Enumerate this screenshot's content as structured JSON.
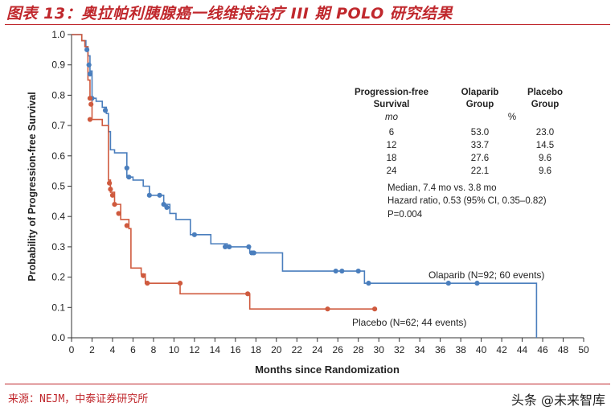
{
  "figure": {
    "title": "图表 13：奥拉帕利胰腺癌一线维持治疗 III 期 POLO 研究结果",
    "source": "来源：NEJM，中泰证券研究所",
    "watermark": "头条 @未来智库"
  },
  "chart_data": {
    "type": "line",
    "subtype": "kaplan-meier-step",
    "title": "",
    "xlabel": "Months since Randomization",
    "ylabel": "Probability of Progression-free Survival",
    "xlim": [
      0,
      50
    ],
    "ylim": [
      0,
      1.0
    ],
    "x_ticks": [
      0,
      2,
      4,
      6,
      8,
      10,
      12,
      14,
      16,
      18,
      20,
      22,
      24,
      26,
      28,
      30,
      32,
      34,
      36,
      38,
      40,
      42,
      44,
      46,
      48,
      50
    ],
    "y_ticks": [
      0.0,
      0.1,
      0.2,
      0.3,
      0.4,
      0.5,
      0.6,
      0.7,
      0.8,
      0.9,
      1.0
    ],
    "y_tick_labels": [
      "0.0",
      "0.1",
      "0.2",
      "0.3",
      "0.4",
      "0.5",
      "0.6",
      "0.7",
      "0.8",
      "0.9",
      "1.0"
    ],
    "grid": false,
    "series": [
      {
        "name": "Olaparib",
        "label": "Olaparib (N=92; 60 events)",
        "color": "#4a7ebd",
        "steps": [
          [
            0,
            1.0
          ],
          [
            1.0,
            0.98
          ],
          [
            1.4,
            0.96
          ],
          [
            1.6,
            0.93
          ],
          [
            1.8,
            0.88
          ],
          [
            2.0,
            0.79
          ],
          [
            2.4,
            0.78
          ],
          [
            3.0,
            0.76
          ],
          [
            3.4,
            0.74
          ],
          [
            3.6,
            0.68
          ],
          [
            3.8,
            0.62
          ],
          [
            4.2,
            0.61
          ],
          [
            5.4,
            0.53
          ],
          [
            6.0,
            0.52
          ],
          [
            7.0,
            0.5
          ],
          [
            7.6,
            0.47
          ],
          [
            8.6,
            0.47
          ],
          [
            9.0,
            0.44
          ],
          [
            9.6,
            0.41
          ],
          [
            10.2,
            0.39
          ],
          [
            11.6,
            0.34
          ],
          [
            13.6,
            0.31
          ],
          [
            15.2,
            0.3
          ],
          [
            17.4,
            0.28
          ],
          [
            20.6,
            0.22
          ],
          [
            28.6,
            0.18
          ],
          [
            45.4,
            0.0
          ]
        ],
        "censor": [
          [
            1.5,
            0.95
          ],
          [
            1.7,
            0.9
          ],
          [
            1.8,
            0.87
          ],
          [
            2.0,
            0.79
          ],
          [
            3.3,
            0.75
          ],
          [
            5.4,
            0.56
          ],
          [
            5.6,
            0.53
          ],
          [
            7.6,
            0.47
          ],
          [
            8.6,
            0.47
          ],
          [
            9.0,
            0.44
          ],
          [
            9.3,
            0.43
          ],
          [
            12.0,
            0.34
          ],
          [
            15.0,
            0.3
          ],
          [
            15.4,
            0.3
          ],
          [
            17.3,
            0.3
          ],
          [
            17.6,
            0.28
          ],
          [
            17.8,
            0.28
          ],
          [
            25.8,
            0.22
          ],
          [
            26.4,
            0.22
          ],
          [
            28.0,
            0.22
          ],
          [
            29.0,
            0.18
          ],
          [
            36.8,
            0.18
          ],
          [
            39.6,
            0.18
          ]
        ]
      },
      {
        "name": "Placebo",
        "label": "Placebo (N=62; 44 events)",
        "color": "#cf5a3e",
        "steps": [
          [
            0,
            1.0
          ],
          [
            1.0,
            0.98
          ],
          [
            1.3,
            0.96
          ],
          [
            1.6,
            0.85
          ],
          [
            1.8,
            0.79
          ],
          [
            2.0,
            0.72
          ],
          [
            3.0,
            0.7
          ],
          [
            3.6,
            0.52
          ],
          [
            3.8,
            0.48
          ],
          [
            4.2,
            0.44
          ],
          [
            4.8,
            0.39
          ],
          [
            5.6,
            0.36
          ],
          [
            5.8,
            0.23
          ],
          [
            6.8,
            0.21
          ],
          [
            7.2,
            0.18
          ],
          [
            10.6,
            0.145
          ],
          [
            17.4,
            0.095
          ],
          [
            29.8,
            0.095
          ]
        ],
        "censor": [
          [
            1.8,
            0.79
          ],
          [
            1.9,
            0.77
          ],
          [
            1.8,
            0.72
          ],
          [
            3.7,
            0.51
          ],
          [
            3.8,
            0.49
          ],
          [
            4.0,
            0.47
          ],
          [
            4.2,
            0.44
          ],
          [
            4.6,
            0.41
          ],
          [
            5.4,
            0.37
          ],
          [
            7.0,
            0.205
          ],
          [
            7.4,
            0.18
          ],
          [
            10.6,
            0.18
          ],
          [
            17.2,
            0.145
          ],
          [
            25.0,
            0.095
          ],
          [
            29.6,
            0.095
          ]
        ]
      }
    ],
    "annotations": {
      "olaparib_label": "Olaparib (N=92; 60 events)",
      "placebo_label": "Placebo (N=62; 44 events)"
    },
    "table": {
      "header": [
        "Progression-free",
        "Survival",
        "Olaparib",
        "Group",
        "Placebo",
        "Group"
      ],
      "units_left": "mo",
      "units_mid": "%",
      "rows": [
        {
          "month": "6",
          "olaparib": "53.0",
          "placebo": "23.0"
        },
        {
          "month": "12",
          "olaparib": "33.7",
          "placebo": "14.5"
        },
        {
          "month": "18",
          "olaparib": "27.6",
          "placebo": "9.6"
        },
        {
          "month": "24",
          "olaparib": "22.1",
          "placebo": "9.6"
        }
      ],
      "stats": [
        "Median, 7.4 mo  vs. 3.8 mo",
        "Hazard ratio, 0.53 (95% CI, 0.35–0.82)",
        "P=0.004"
      ]
    }
  }
}
